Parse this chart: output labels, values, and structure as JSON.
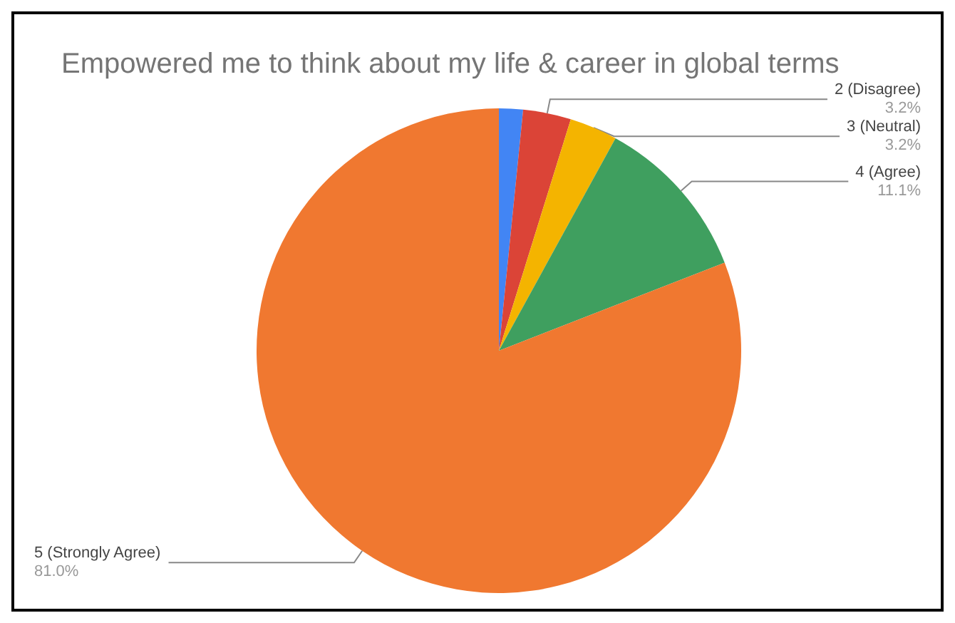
{
  "chart_data": {
    "type": "pie",
    "title": "Empowered me to think about my life & career in global terms",
    "categories": [
      null,
      "2 (Disagree)",
      "3 (Neutral)",
      "4 (Agree)",
      "5 (Strongly Agree)"
    ],
    "values": [
      1.6,
      3.2,
      3.2,
      11.1,
      81.0
    ],
    "value_labels": [
      null,
      "3.2%",
      "3.2%",
      "11.1%",
      "81.0%"
    ],
    "colors": [
      "#4285f4",
      "#db4437",
      "#f4b400",
      "#3f9f5f",
      "#f07830"
    ],
    "legend": false
  }
}
